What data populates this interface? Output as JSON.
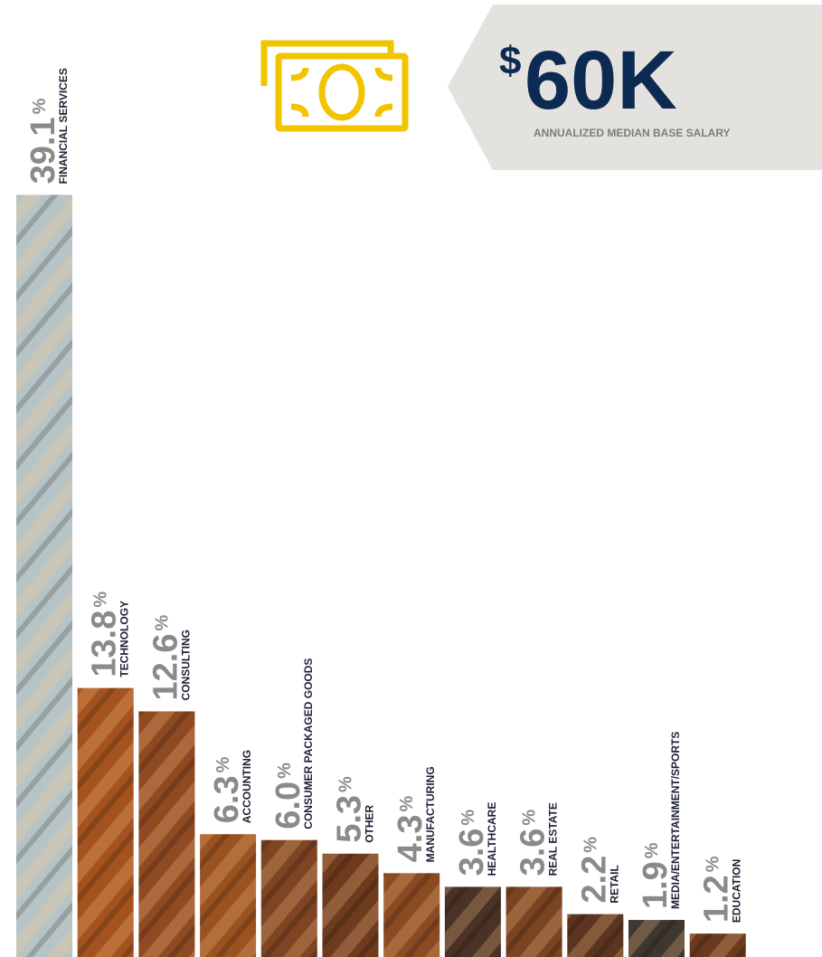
{
  "chart_data": {
    "type": "bar",
    "categories": [
      "FINANCIAL SERVICES",
      "TECHNOLOGY",
      "CONSULTING",
      "ACCOUNTING",
      "CONSUMER PACKAGED GOODS",
      "OTHER",
      "MANUFACTURING",
      "HEALTHCARE",
      "REAL ESTATE",
      "RETAIL",
      "MEDIA/ENTERTAINMENT/SPORTS",
      "EDUCATION"
    ],
    "values": [
      39.1,
      13.8,
      12.6,
      6.3,
      6.0,
      5.3,
      4.3,
      3.6,
      3.6,
      2.2,
      1.9,
      1.2
    ],
    "value_labels": [
      "39.1",
      "13.8",
      "12.6",
      "6.3",
      "6.0",
      "5.3",
      "4.3",
      "3.6",
      "3.6",
      "2.2",
      "1.9",
      "1.2"
    ],
    "unit": "%",
    "colors": [
      "#b7c4c6",
      "#a4531f",
      "#8f4a22",
      "#9a5220",
      "#7e4423",
      "#6e3b1f",
      "#8a4a22",
      "#4a3226",
      "#7a4322",
      "#5c3520",
      "#3e3630",
      "#6a3a1e"
    ],
    "ylim": [
      0,
      40
    ],
    "callout": {
      "currency": "$",
      "amount": "60K",
      "label": "ANNUALIZED MEDIAN BASE SALARY"
    }
  }
}
